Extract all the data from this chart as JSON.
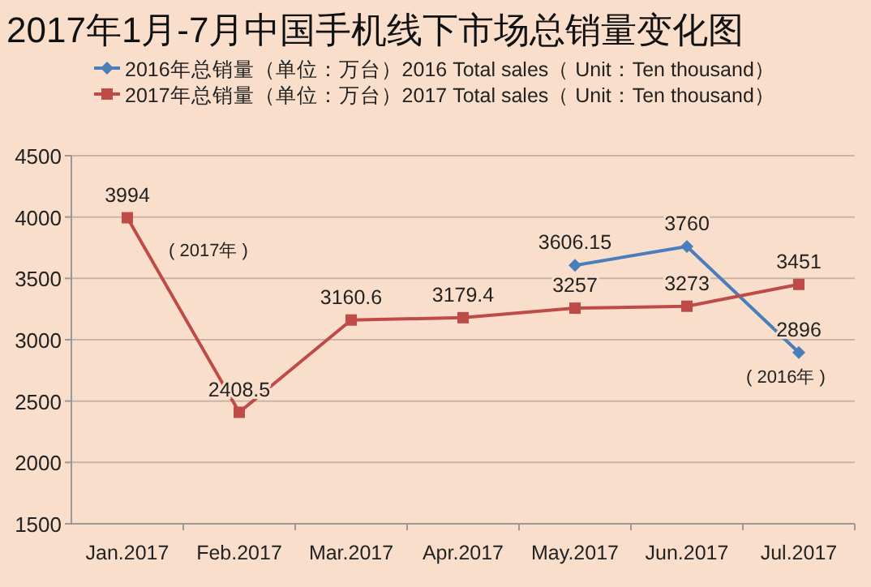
{
  "chart_data": {
    "type": "line",
    "title": "2017年1月-7月中国手机线下市场总销量变化图",
    "categories": [
      "Jan.2017",
      "Feb.2017",
      "Mar.2017",
      "Apr.2017",
      "May.2017",
      "Jun.2017",
      "Jul.2017"
    ],
    "series": [
      {
        "name": "2016年总销量（单位：万台）2016 Total sales（ Unit：Ten thousand）",
        "color": "#4a7ebb",
        "marker": "diamond",
        "values": [
          null,
          null,
          null,
          null,
          3606.15,
          3760,
          2896
        ]
      },
      {
        "name": "2017年总销量（单位：万台）2017 Total sales（ Unit：Ten thousand）",
        "color": "#be4b48",
        "marker": "square",
        "values": [
          3994,
          2408.5,
          3160.6,
          3179.4,
          3257,
          3273,
          3451
        ]
      }
    ],
    "ylim": [
      1500,
      4500
    ],
    "yticks": [
      1500,
      2000,
      2500,
      3000,
      3500,
      4000,
      4500
    ],
    "grid": "y",
    "legend": "top",
    "data_labels": true,
    "annotations": [
      "( 2017年 )",
      "( 2016年 )"
    ]
  }
}
